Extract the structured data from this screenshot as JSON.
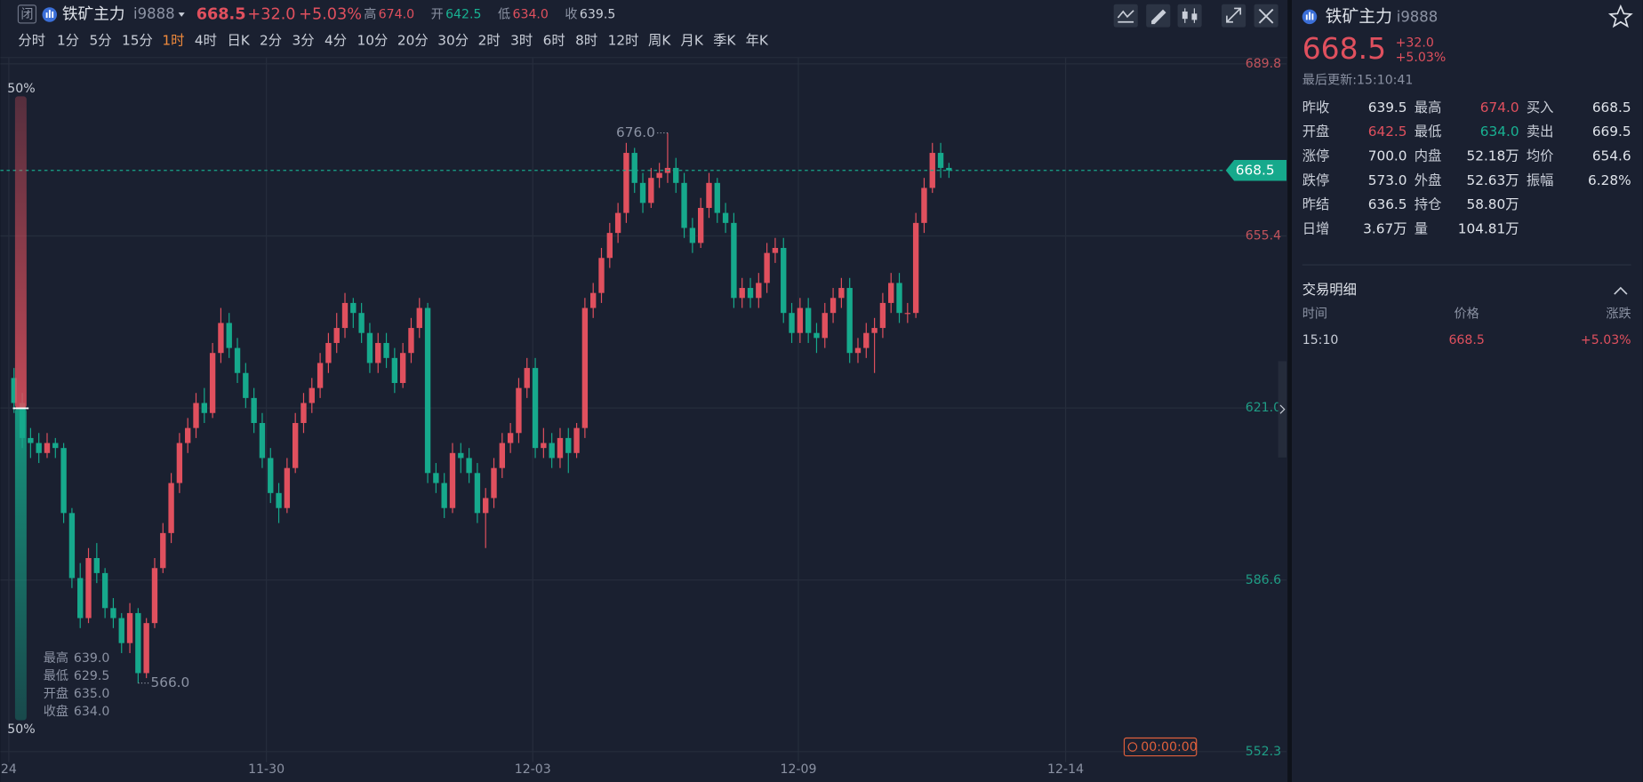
{
  "header": {
    "badge": "闭",
    "name": "铁矿主力",
    "code": "i9888",
    "price": "668.5",
    "change": "+32.0",
    "pct": "+5.03%",
    "ohlc": [
      {
        "label": "高",
        "value": "674.0",
        "color": "#e0505e"
      },
      {
        "label": "开",
        "value": "642.5",
        "color": "#18b192"
      },
      {
        "label": "低",
        "value": "634.0",
        "color": "#e0505e"
      },
      {
        "label": "收",
        "value": "639.5",
        "color": "#c9ced8"
      }
    ]
  },
  "periods": {
    "items": [
      "分时",
      "1分",
      "5分",
      "15分",
      "1时",
      "4时",
      "日K",
      "2分",
      "3分",
      "4分",
      "10分",
      "20分",
      "30分",
      "2时",
      "3时",
      "6时",
      "8时",
      "12时",
      "周K",
      "月K",
      "季K",
      "年K"
    ],
    "active_index": 4
  },
  "chart_data": {
    "type": "candlestick",
    "up_color": "#e0505e",
    "down_color": "#16a98c",
    "open": [
      627,
      622,
      615,
      614,
      612,
      614,
      613,
      600,
      587,
      579,
      591,
      588,
      581,
      579,
      574,
      580,
      568,
      578,
      589,
      596,
      606,
      614,
      617,
      622,
      620,
      632,
      638,
      633,
      628,
      623,
      618,
      611,
      604,
      601,
      609,
      618,
      622,
      625,
      630,
      634,
      637,
      642,
      640,
      636,
      630,
      634,
      631,
      626,
      632,
      637,
      641,
      608,
      606,
      601,
      612,
      611,
      608,
      600,
      603,
      609,
      614,
      616,
      625,
      629,
      613,
      614,
      611,
      615,
      612,
      617,
      641,
      644,
      651,
      656,
      660,
      672,
      666,
      662,
      667,
      668,
      669,
      666,
      657,
      654,
      661,
      666,
      660,
      658,
      643,
      645,
      643,
      646,
      652,
      653,
      640,
      636,
      641,
      636,
      635,
      640,
      643,
      645,
      632,
      633,
      636,
      637,
      642,
      646,
      640,
      640,
      658,
      665,
      672,
      669
    ],
    "high": [
      629,
      624,
      617,
      616,
      616,
      615,
      614,
      601,
      590,
      593,
      594,
      589,
      583,
      580,
      582,
      581,
      579,
      591,
      598,
      608,
      616,
      619,
      624,
      625,
      634,
      641,
      640,
      635,
      630,
      625,
      620,
      613,
      606,
      611,
      620,
      624,
      627,
      632,
      636,
      640,
      644,
      643,
      642,
      638,
      636,
      636,
      633,
      634,
      639,
      643,
      642,
      610,
      608,
      614,
      614,
      613,
      610,
      605,
      611,
      616,
      618,
      627,
      631,
      631,
      617,
      616,
      617,
      617,
      618,
      643,
      646,
      653,
      658,
      662,
      674,
      673,
      668,
      669,
      670,
      676,
      671,
      668,
      659,
      663,
      668,
      667,
      662,
      660,
      647,
      647,
      648,
      654,
      655,
      655,
      642,
      643,
      643,
      638,
      642,
      645,
      647,
      647,
      635,
      638,
      639,
      644,
      648,
      648,
      642,
      660,
      667,
      674,
      674,
      670
    ],
    "low": [
      620,
      613,
      611,
      610,
      611,
      611,
      598,
      585,
      577,
      578,
      586,
      579,
      577,
      572,
      572,
      566,
      567,
      577,
      588,
      594,
      604,
      612,
      615,
      618,
      619,
      630,
      631,
      626,
      621,
      616,
      609,
      602,
      598,
      600,
      608,
      616,
      620,
      623,
      628,
      632,
      635,
      637,
      634,
      628,
      628,
      629,
      624,
      625,
      630,
      635,
      606,
      604,
      599,
      600,
      608,
      606,
      598,
      593,
      601,
      607,
      612,
      614,
      623,
      611,
      611,
      609,
      609,
      608,
      611,
      615,
      639,
      642,
      649,
      654,
      658,
      664,
      660,
      661,
      665,
      666,
      664,
      655,
      652,
      653,
      659,
      658,
      656,
      641,
      641,
      641,
      641,
      644,
      650,
      638,
      634,
      634,
      634,
      632,
      633,
      638,
      641,
      630,
      630,
      631,
      628,
      635,
      640,
      638,
      638,
      639,
      656,
      664,
      667,
      667
    ],
    "close": [
      622,
      615,
      614,
      612,
      614,
      613,
      600,
      587,
      579,
      591,
      588,
      581,
      579,
      574,
      580,
      568,
      578,
      589,
      596,
      606,
      614,
      617,
      622,
      620,
      632,
      638,
      633,
      628,
      623,
      618,
      611,
      604,
      601,
      609,
      618,
      622,
      625,
      630,
      634,
      637,
      642,
      640,
      636,
      630,
      634,
      631,
      626,
      632,
      637,
      641,
      608,
      606,
      601,
      612,
      611,
      608,
      600,
      603,
      609,
      614,
      616,
      625,
      629,
      613,
      614,
      611,
      615,
      612,
      617,
      641,
      644,
      651,
      656,
      660,
      672,
      666,
      662,
      667,
      668,
      669,
      666,
      657,
      654,
      661,
      666,
      660,
      658,
      643,
      645,
      643,
      646,
      652,
      653,
      640,
      636,
      641,
      636,
      635,
      640,
      643,
      645,
      632,
      633,
      636,
      637,
      642,
      646,
      640,
      640,
      658,
      665,
      672,
      669,
      668.5
    ],
    "xlim": [
      -1.65,
      153.8
    ],
    "xticks": [
      {
        "value": -0.63,
        "label": "24"
      },
      {
        "value": 30.5,
        "label": "11-30"
      },
      {
        "value": 62.7,
        "label": "12-03"
      },
      {
        "value": 94.8,
        "label": "12-09"
      },
      {
        "value": 127.1,
        "label": "12-14"
      }
    ],
    "ylim": [
      552.3,
      689.8
    ],
    "yticks": [
      552.3,
      586.6,
      {
        "value": 621,
        "label": "621.0"
      },
      655.4,
      689.8
    ],
    "grid": true,
    "last_price": 668.5,
    "annotations": [
      {
        "value": 676,
        "label": "676.0"
      },
      {
        "value": 566,
        "label": "566.0"
      }
    ],
    "ratio": {
      "values": [
        50,
        50
      ],
      "value_labels": [
        "50%",
        "50%"
      ]
    },
    "hover": [
      {
        "label": "最高",
        "value": "639.0"
      },
      {
        "label": "最低",
        "value": "629.5"
      },
      {
        "label": "开盘",
        "value": "635.0"
      },
      {
        "label": "收盘",
        "value": "634.0"
      }
    ],
    "countdown": "00:00:00"
  },
  "quote": {
    "name": "铁矿主力",
    "code": "i9888",
    "price": "668.5",
    "change": "+32.0",
    "pct": "+5.03%",
    "updated": "最后更新:15:10:41",
    "stats": [
      [
        {
          "label": "昨收",
          "value": "639.5"
        },
        {
          "label": "最高",
          "value": "674.0",
          "color": "#e0505e"
        },
        {
          "label": "买入",
          "value": "668.5"
        }
      ],
      [
        {
          "label": "开盘",
          "value": "642.5",
          "color": "#e0505e"
        },
        {
          "label": "最低",
          "value": "634.0",
          "color": "#18b192"
        },
        {
          "label": "卖出",
          "value": "669.5"
        }
      ],
      [
        {
          "label": "涨停",
          "value": "700.0"
        },
        {
          "label": "内盘",
          "value": "52.18万"
        },
        {
          "label": "均价",
          "value": "654.6"
        }
      ],
      [
        {
          "label": "跌停",
          "value": "573.0"
        },
        {
          "label": "外盘",
          "value": "52.63万"
        },
        {
          "label": "振幅",
          "value": "6.28%"
        }
      ],
      [
        {
          "label": "昨结",
          "value": "636.5"
        },
        {
          "label": "持仓",
          "value": "58.80万"
        }
      ],
      [
        {
          "label": "日增",
          "value": "3.67万"
        },
        {
          "label": "量",
          "value": "104.81万"
        }
      ]
    ],
    "trades": {
      "title": "交易明细",
      "columns": [
        "时间",
        "价格",
        "涨跌"
      ],
      "rows": [
        [
          "15:10",
          "668.5",
          "+5.03%"
        ]
      ]
    }
  }
}
